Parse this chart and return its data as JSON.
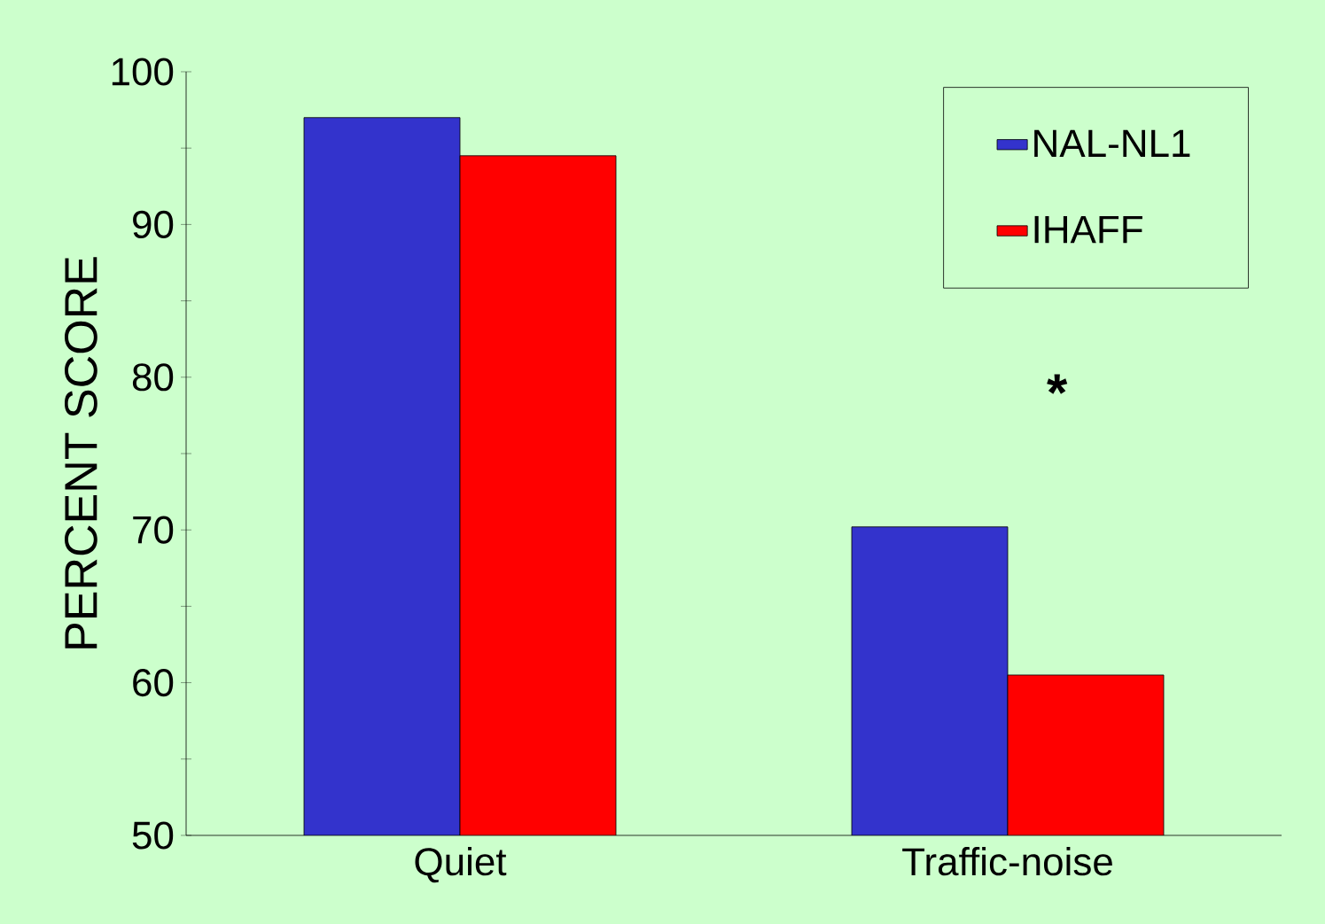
{
  "chart_data": {
    "type": "bar",
    "ylabel": "PERCENT SCORE",
    "categories": [
      "Quiet",
      "Traffic-noise"
    ],
    "series": [
      {
        "name": "NAL-NL1",
        "color": "#3333cc",
        "values": [
          97,
          70.2
        ]
      },
      {
        "name": "IHAFF",
        "color": "#ff0000",
        "values": [
          94.5,
          60.5
        ]
      }
    ],
    "ylim": [
      50,
      100
    ],
    "yticks": [
      50,
      {
        "value": 55,
        "label": null
      },
      60,
      {
        "value": 65,
        "label": null
      },
      70,
      {
        "value": 75,
        "label": null
      },
      80,
      {
        "value": 85,
        "label": null
      },
      90,
      {
        "value": 95,
        "label": null
      },
      100
    ],
    "legend": "top right",
    "annotations": [
      "*"
    ]
  }
}
